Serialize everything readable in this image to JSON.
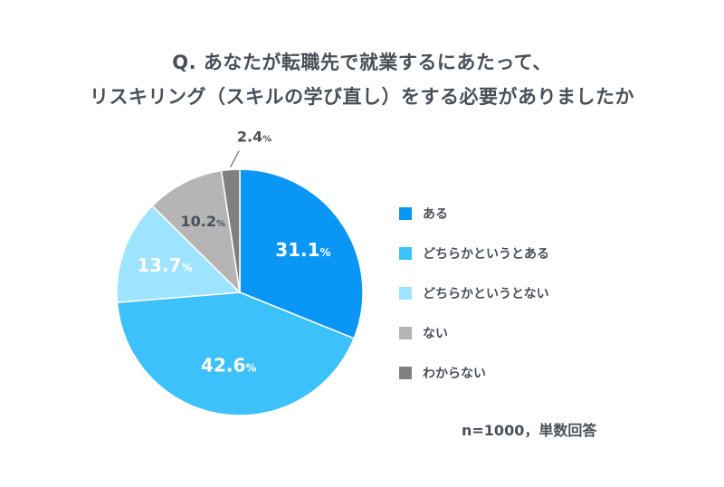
{
  "chart_data": {
    "type": "pie",
    "title_lines": [
      "Q. あなたが転職先で就業するにあたって、",
      "リスキリング（スキルの学び直し）をする必要がありましたか"
    ],
    "categories": [
      "ある",
      "どちらかというとある",
      "どちらかというとない",
      "ない",
      "わからない"
    ],
    "values": [
      31.1,
      42.6,
      13.7,
      10.2,
      2.4
    ],
    "data_labels": [
      "31.1",
      "42.6",
      "13.7",
      "10.2",
      "2.4"
    ],
    "unit": "%",
    "colors": [
      "#0a96f5",
      "#3cc1fa",
      "#9ee3ff",
      "#b5b5b5",
      "#808080"
    ],
    "label_colors": [
      "#ffffff",
      "#ffffff",
      "#ffffff",
      "#4a5058",
      "#4a5058"
    ],
    "legend_position": "right",
    "start_angle_deg": 0,
    "direction": "clockwise",
    "note": "n=1000，単数回答"
  }
}
